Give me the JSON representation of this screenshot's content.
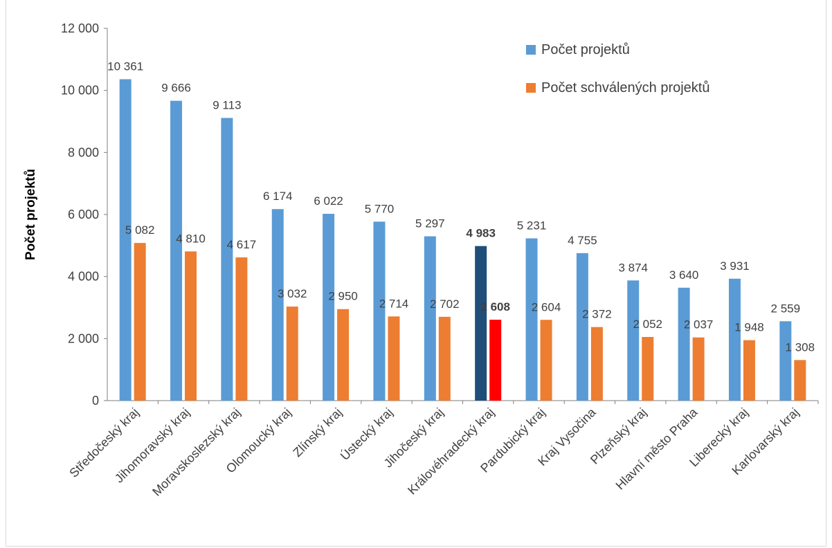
{
  "chart_data": {
    "type": "bar",
    "title": "",
    "ylabel": "Počet projektů",
    "xlabel": "",
    "ylim": [
      0,
      12000
    ],
    "yticks": [
      0,
      2000,
      4000,
      6000,
      8000,
      10000,
      12000
    ],
    "ytick_labels": [
      "0",
      "2 000",
      "4 000",
      "6 000",
      "8 000",
      "10 000",
      "12 000"
    ],
    "categories": [
      "Středočeský kraj",
      "Jihomoravský kraj",
      "Moravskoslezský kraj",
      "Olomoucký kraj",
      "Zlínský kraj",
      "Ústecký kraj",
      "Jihočeský kraj",
      "Královéhradecký kraj",
      "Pardubický kraj",
      "Kraj Vysočina",
      "Plzeňský kraj",
      "Hlavní město Praha",
      "Liberecký kraj",
      "Karlovarský kraj"
    ],
    "series": [
      {
        "name": "Počet projektů",
        "color": "#5b9bd5",
        "highlight_color": "#1f4e79",
        "values": [
          10361,
          9666,
          9113,
          6174,
          6022,
          5770,
          5297,
          4983,
          5231,
          4755,
          3874,
          3640,
          3931,
          2559
        ],
        "labels": [
          "10 361",
          "9 666",
          "9 113",
          "6 174",
          "6 022",
          "5 770",
          "5 297",
          "4 983",
          "5 231",
          "4 755",
          "3 874",
          "3 640",
          "3 931",
          "2 559"
        ]
      },
      {
        "name": "Počet schválených projektů",
        "color": "#ed7d31",
        "highlight_color": "#ff0000",
        "values": [
          5082,
          4810,
          4617,
          3032,
          2950,
          2714,
          2702,
          2608,
          2604,
          2372,
          2052,
          2037,
          1948,
          1308
        ],
        "labels": [
          "5 082",
          "4 810",
          "4 617",
          "3 032",
          "2 950",
          "2 714",
          "2 702",
          "2 608",
          "2 604",
          "2 372",
          "2 052",
          "2 037",
          "1 948",
          "1 308"
        ]
      }
    ],
    "highlight_category": "Královéhradecký kraj",
    "legend_position": "top-right",
    "grid": false
  }
}
